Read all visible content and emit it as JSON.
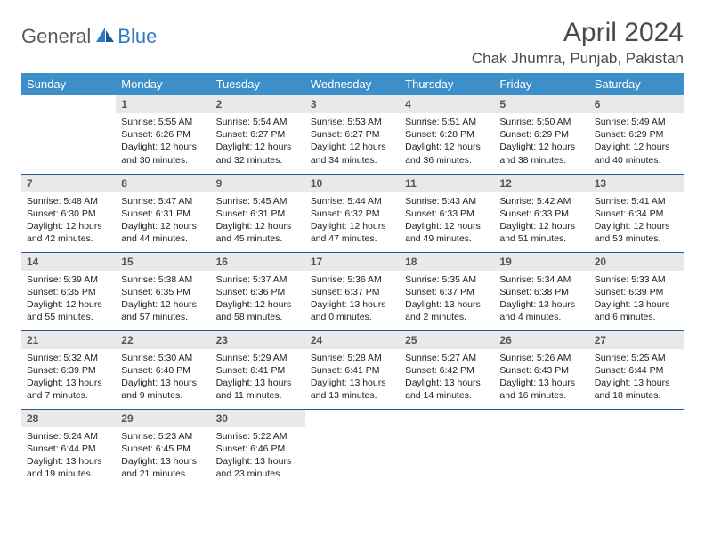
{
  "logo": {
    "general": "General",
    "blue": "Blue"
  },
  "header": {
    "title": "April 2024",
    "location": "Chak Jhumra, Punjab, Pakistan"
  },
  "style": {
    "header_bg": "#3d8fc9",
    "header_fg": "#ffffff",
    "daynum_bg": "#e9e9e9",
    "row_border": "#2a5a8a",
    "logo_gray": "#5a5a5a",
    "logo_blue": "#2f7bbf",
    "title_color": "#4a4a4a",
    "body_font_size": 10.5,
    "title_font_size": 30,
    "location_font_size": 17
  },
  "weekdays": [
    "Sunday",
    "Monday",
    "Tuesday",
    "Wednesday",
    "Thursday",
    "Friday",
    "Saturday"
  ],
  "weeks": [
    [
      {
        "n": "",
        "sr": "",
        "ss": "",
        "d1": "",
        "d2": ""
      },
      {
        "n": "1",
        "sr": "Sunrise: 5:55 AM",
        "ss": "Sunset: 6:26 PM",
        "d1": "Daylight: 12 hours",
        "d2": "and 30 minutes."
      },
      {
        "n": "2",
        "sr": "Sunrise: 5:54 AM",
        "ss": "Sunset: 6:27 PM",
        "d1": "Daylight: 12 hours",
        "d2": "and 32 minutes."
      },
      {
        "n": "3",
        "sr": "Sunrise: 5:53 AM",
        "ss": "Sunset: 6:27 PM",
        "d1": "Daylight: 12 hours",
        "d2": "and 34 minutes."
      },
      {
        "n": "4",
        "sr": "Sunrise: 5:51 AM",
        "ss": "Sunset: 6:28 PM",
        "d1": "Daylight: 12 hours",
        "d2": "and 36 minutes."
      },
      {
        "n": "5",
        "sr": "Sunrise: 5:50 AM",
        "ss": "Sunset: 6:29 PM",
        "d1": "Daylight: 12 hours",
        "d2": "and 38 minutes."
      },
      {
        "n": "6",
        "sr": "Sunrise: 5:49 AM",
        "ss": "Sunset: 6:29 PM",
        "d1": "Daylight: 12 hours",
        "d2": "and 40 minutes."
      }
    ],
    [
      {
        "n": "7",
        "sr": "Sunrise: 5:48 AM",
        "ss": "Sunset: 6:30 PM",
        "d1": "Daylight: 12 hours",
        "d2": "and 42 minutes."
      },
      {
        "n": "8",
        "sr": "Sunrise: 5:47 AM",
        "ss": "Sunset: 6:31 PM",
        "d1": "Daylight: 12 hours",
        "d2": "and 44 minutes."
      },
      {
        "n": "9",
        "sr": "Sunrise: 5:45 AM",
        "ss": "Sunset: 6:31 PM",
        "d1": "Daylight: 12 hours",
        "d2": "and 45 minutes."
      },
      {
        "n": "10",
        "sr": "Sunrise: 5:44 AM",
        "ss": "Sunset: 6:32 PM",
        "d1": "Daylight: 12 hours",
        "d2": "and 47 minutes."
      },
      {
        "n": "11",
        "sr": "Sunrise: 5:43 AM",
        "ss": "Sunset: 6:33 PM",
        "d1": "Daylight: 12 hours",
        "d2": "and 49 minutes."
      },
      {
        "n": "12",
        "sr": "Sunrise: 5:42 AM",
        "ss": "Sunset: 6:33 PM",
        "d1": "Daylight: 12 hours",
        "d2": "and 51 minutes."
      },
      {
        "n": "13",
        "sr": "Sunrise: 5:41 AM",
        "ss": "Sunset: 6:34 PM",
        "d1": "Daylight: 12 hours",
        "d2": "and 53 minutes."
      }
    ],
    [
      {
        "n": "14",
        "sr": "Sunrise: 5:39 AM",
        "ss": "Sunset: 6:35 PM",
        "d1": "Daylight: 12 hours",
        "d2": "and 55 minutes."
      },
      {
        "n": "15",
        "sr": "Sunrise: 5:38 AM",
        "ss": "Sunset: 6:35 PM",
        "d1": "Daylight: 12 hours",
        "d2": "and 57 minutes."
      },
      {
        "n": "16",
        "sr": "Sunrise: 5:37 AM",
        "ss": "Sunset: 6:36 PM",
        "d1": "Daylight: 12 hours",
        "d2": "and 58 minutes."
      },
      {
        "n": "17",
        "sr": "Sunrise: 5:36 AM",
        "ss": "Sunset: 6:37 PM",
        "d1": "Daylight: 13 hours",
        "d2": "and 0 minutes."
      },
      {
        "n": "18",
        "sr": "Sunrise: 5:35 AM",
        "ss": "Sunset: 6:37 PM",
        "d1": "Daylight: 13 hours",
        "d2": "and 2 minutes."
      },
      {
        "n": "19",
        "sr": "Sunrise: 5:34 AM",
        "ss": "Sunset: 6:38 PM",
        "d1": "Daylight: 13 hours",
        "d2": "and 4 minutes."
      },
      {
        "n": "20",
        "sr": "Sunrise: 5:33 AM",
        "ss": "Sunset: 6:39 PM",
        "d1": "Daylight: 13 hours",
        "d2": "and 6 minutes."
      }
    ],
    [
      {
        "n": "21",
        "sr": "Sunrise: 5:32 AM",
        "ss": "Sunset: 6:39 PM",
        "d1": "Daylight: 13 hours",
        "d2": "and 7 minutes."
      },
      {
        "n": "22",
        "sr": "Sunrise: 5:30 AM",
        "ss": "Sunset: 6:40 PM",
        "d1": "Daylight: 13 hours",
        "d2": "and 9 minutes."
      },
      {
        "n": "23",
        "sr": "Sunrise: 5:29 AM",
        "ss": "Sunset: 6:41 PM",
        "d1": "Daylight: 13 hours",
        "d2": "and 11 minutes."
      },
      {
        "n": "24",
        "sr": "Sunrise: 5:28 AM",
        "ss": "Sunset: 6:41 PM",
        "d1": "Daylight: 13 hours",
        "d2": "and 13 minutes."
      },
      {
        "n": "25",
        "sr": "Sunrise: 5:27 AM",
        "ss": "Sunset: 6:42 PM",
        "d1": "Daylight: 13 hours",
        "d2": "and 14 minutes."
      },
      {
        "n": "26",
        "sr": "Sunrise: 5:26 AM",
        "ss": "Sunset: 6:43 PM",
        "d1": "Daylight: 13 hours",
        "d2": "and 16 minutes."
      },
      {
        "n": "27",
        "sr": "Sunrise: 5:25 AM",
        "ss": "Sunset: 6:44 PM",
        "d1": "Daylight: 13 hours",
        "d2": "and 18 minutes."
      }
    ],
    [
      {
        "n": "28",
        "sr": "Sunrise: 5:24 AM",
        "ss": "Sunset: 6:44 PM",
        "d1": "Daylight: 13 hours",
        "d2": "and 19 minutes."
      },
      {
        "n": "29",
        "sr": "Sunrise: 5:23 AM",
        "ss": "Sunset: 6:45 PM",
        "d1": "Daylight: 13 hours",
        "d2": "and 21 minutes."
      },
      {
        "n": "30",
        "sr": "Sunrise: 5:22 AM",
        "ss": "Sunset: 6:46 PM",
        "d1": "Daylight: 13 hours",
        "d2": "and 23 minutes."
      },
      {
        "n": "",
        "sr": "",
        "ss": "",
        "d1": "",
        "d2": ""
      },
      {
        "n": "",
        "sr": "",
        "ss": "",
        "d1": "",
        "d2": ""
      },
      {
        "n": "",
        "sr": "",
        "ss": "",
        "d1": "",
        "d2": ""
      },
      {
        "n": "",
        "sr": "",
        "ss": "",
        "d1": "",
        "d2": ""
      }
    ]
  ]
}
